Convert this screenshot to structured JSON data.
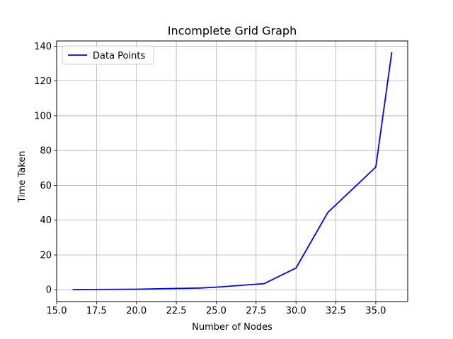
{
  "chart_data": {
    "type": "line",
    "title": "Incomplete Grid Graph",
    "xlabel": "Number of Nodes",
    "ylabel": "Time Taken",
    "xlim": [
      15.0,
      37.0
    ],
    "ylim": [
      -6.8,
      143.0
    ],
    "xticks": [
      15.0,
      17.5,
      20.0,
      22.5,
      25.0,
      27.5,
      30.0,
      32.5,
      35.0
    ],
    "xtick_labels": [
      "15.0",
      "17.5",
      "20.0",
      "22.5",
      "25.0",
      "27.5",
      "30.0",
      "32.5",
      "35.0"
    ],
    "yticks": [
      0,
      20,
      40,
      60,
      80,
      100,
      120,
      140
    ],
    "ytick_labels": [
      "0",
      "20",
      "40",
      "60",
      "80",
      "100",
      "120",
      "140"
    ],
    "grid": true,
    "legend": "top-left",
    "series": [
      {
        "name": "Data Points",
        "color": "#0000ff",
        "x": [
          16,
          20,
          24,
          25,
          28,
          30,
          32,
          35,
          36
        ],
        "y": [
          0.1,
          0.3,
          1.0,
          1.5,
          3.5,
          12.5,
          44.5,
          70.5,
          136.5
        ]
      }
    ]
  }
}
